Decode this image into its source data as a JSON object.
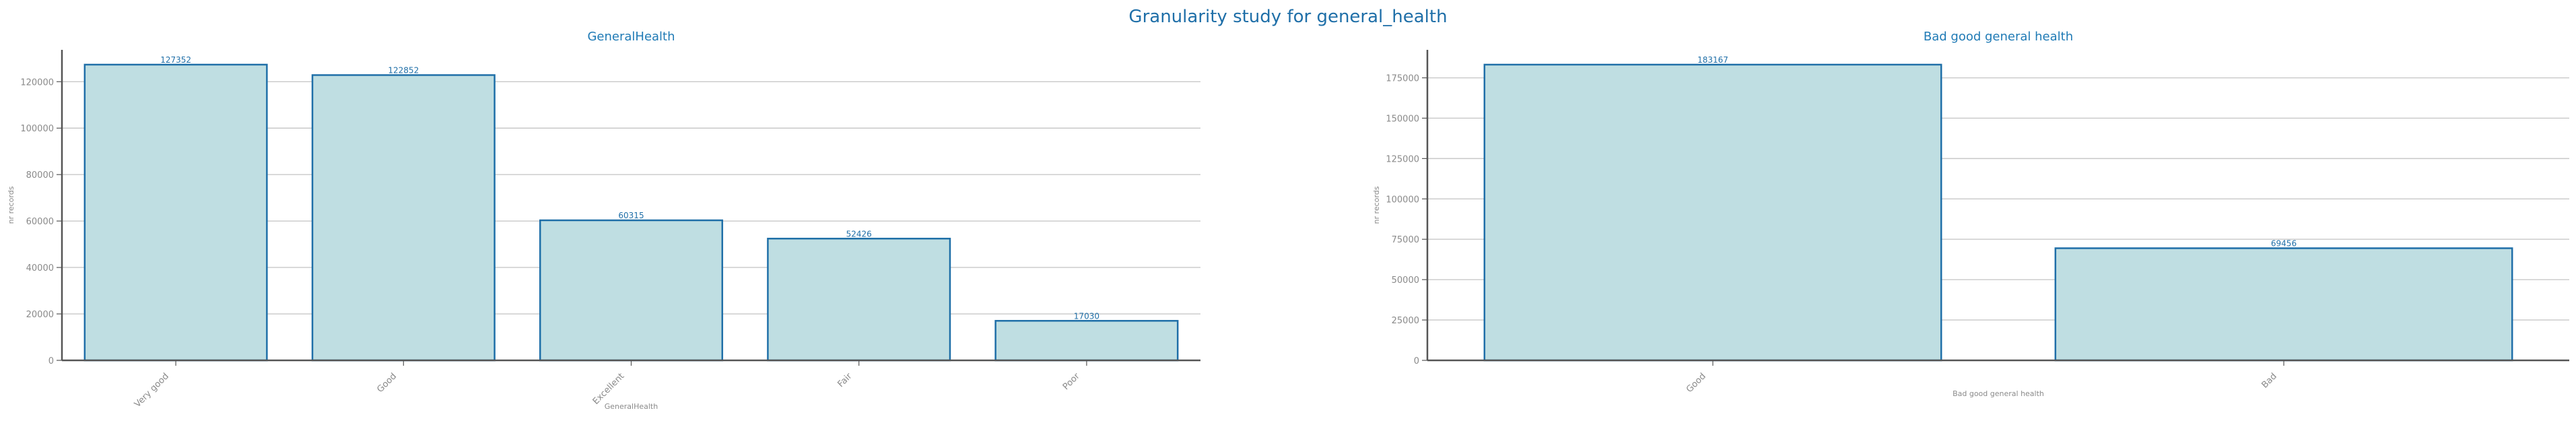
{
  "suptitle": "Granularity study for general_health",
  "colors": {
    "bar_fill": "#bfdee2",
    "bar_edge": "#1f6fa8",
    "grid": "#c8c8c8",
    "axis": "#555555",
    "text": "#8a8a8a",
    "title": "#1f7ab5"
  },
  "chart_data": [
    {
      "type": "bar",
      "title": "GeneralHealth",
      "xlabel": "GeneralHealth",
      "ylabel": "nr records",
      "categories": [
        "Very good",
        "Good",
        "Excellent",
        "Fair",
        "Poor"
      ],
      "values": [
        127352,
        122852,
        60315,
        52426,
        17030
      ],
      "yticks": [
        0,
        20000,
        40000,
        60000,
        80000,
        100000,
        120000
      ],
      "ylim": [
        0,
        133720
      ],
      "grid": true
    },
    {
      "type": "bar",
      "title": "Bad good general health",
      "xlabel": "Bad good general health",
      "ylabel": "nr records",
      "categories": [
        "Good",
        "Bad"
      ],
      "values": [
        183167,
        69456
      ],
      "yticks": [
        0,
        25000,
        50000,
        75000,
        100000,
        125000,
        150000,
        175000
      ],
      "ylim": [
        0,
        192325
      ],
      "grid": true
    }
  ]
}
